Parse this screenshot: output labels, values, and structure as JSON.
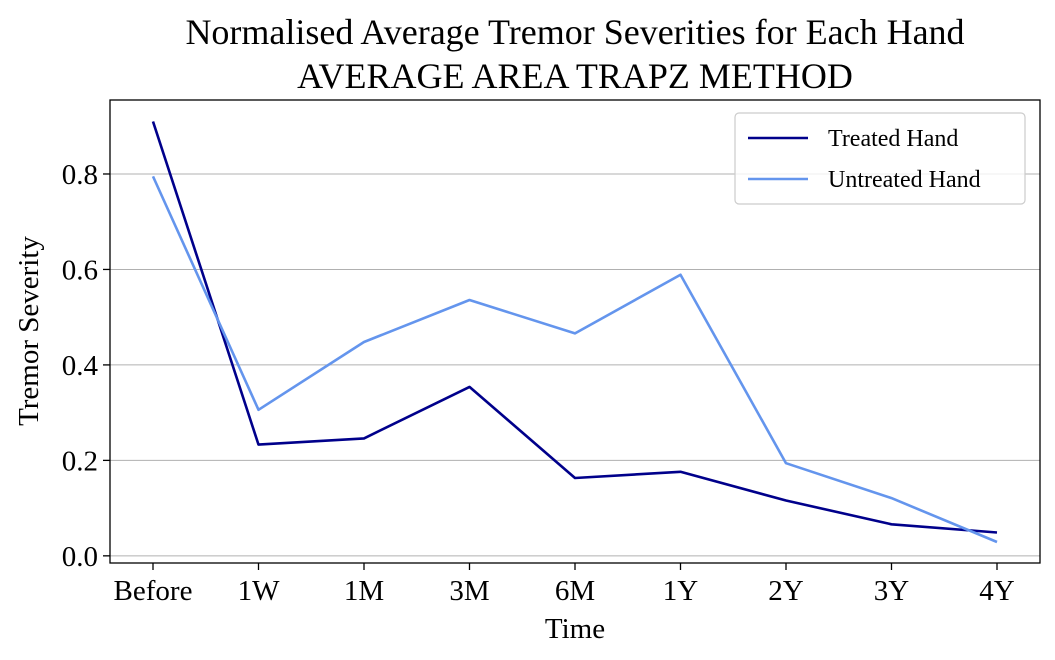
{
  "chart_data": {
    "type": "line",
    "title_lines": [
      "Normalised Average Tremor Severities for Each Hand",
      "AVERAGE AREA TRAPZ METHOD"
    ],
    "xlabel": "Time",
    "ylabel": "Tremor Severity",
    "categories": [
      "Before",
      "1W",
      "1M",
      "3M",
      "6M",
      "1Y",
      "2Y",
      "3Y",
      "4Y"
    ],
    "ylim": [
      -0.015,
      0.955
    ],
    "yticks": [
      0.0,
      0.2,
      0.4,
      0.6,
      0.8
    ],
    "ytick_labels": [
      "0.0",
      "0.2",
      "0.4",
      "0.6",
      "0.8"
    ],
    "grid": "horizontal",
    "legend_position": "top-right",
    "series": [
      {
        "name": "Treated Hand",
        "color": "#00008b",
        "values": [
          0.91,
          0.233,
          0.246,
          0.354,
          0.163,
          0.176,
          0.116,
          0.066,
          0.049
        ]
      },
      {
        "name": "Untreated Hand",
        "color": "#6495ed",
        "values": [
          0.795,
          0.306,
          0.448,
          0.536,
          0.466,
          0.589,
          0.194,
          0.121,
          0.029
        ]
      }
    ]
  }
}
